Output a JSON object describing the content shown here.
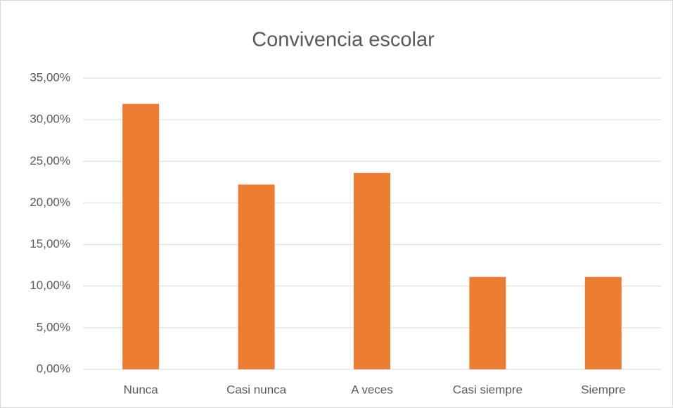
{
  "chart_data": {
    "type": "bar",
    "title": "Convivencia escolar",
    "categories": [
      "Nunca",
      "Casi nunca",
      "A veces",
      "Casi siempre",
      "Siempre"
    ],
    "values": [
      31.9,
      22.2,
      23.6,
      11.1,
      11.1
    ],
    "color": "#ed7d31",
    "ylim": [
      0,
      35
    ],
    "yticks": [
      {
        "value": 0,
        "label": "0,00%"
      },
      {
        "value": 5,
        "label": "5,00%"
      },
      {
        "value": 10,
        "label": "10,00%"
      },
      {
        "value": 15,
        "label": "15,00%"
      },
      {
        "value": 20,
        "label": "20,00%"
      },
      {
        "value": 25,
        "label": "25,00%"
      },
      {
        "value": 30,
        "label": "30,00%"
      },
      {
        "value": 35,
        "label": "35,00%"
      }
    ],
    "grid": true
  }
}
